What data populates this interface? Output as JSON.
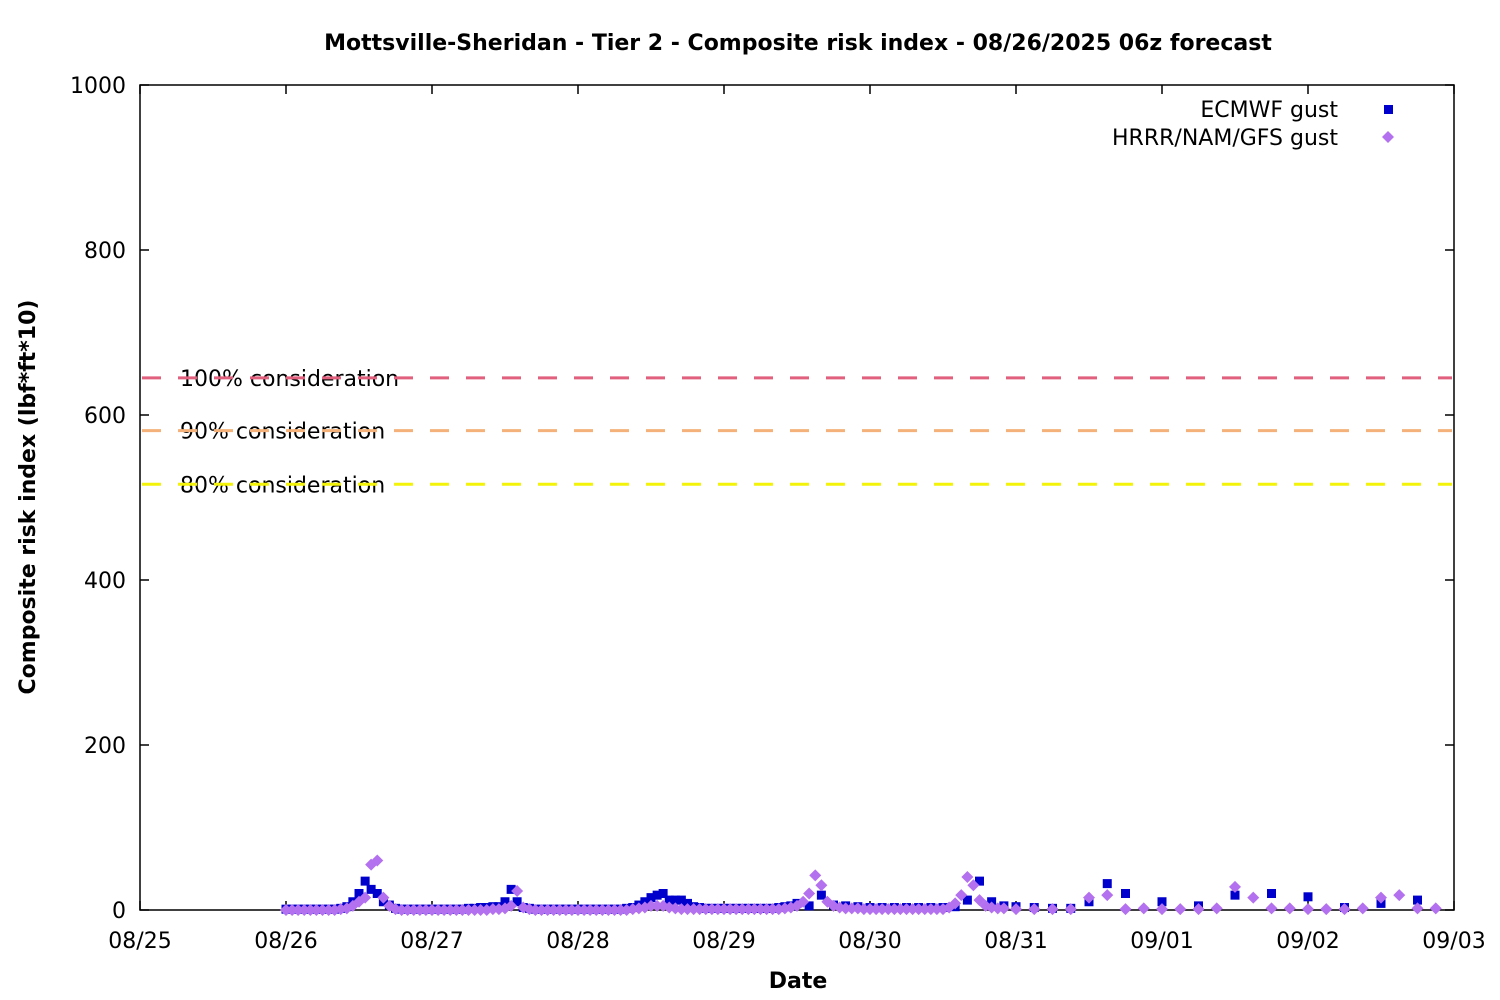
{
  "chart_data": {
    "type": "scatter",
    "title": "Mottsville-Sheridan - Tier 2 - Composite risk index - 08/26/2025 06z forecast",
    "xlabel": "Date",
    "ylabel": "Composite risk index (lbf*ft*10)",
    "xlim": [
      "08/25",
      "09/03"
    ],
    "ylim": [
      0,
      1000
    ],
    "x_ticks": [
      "08/25",
      "08/26",
      "08/27",
      "08/28",
      "08/29",
      "08/30",
      "08/31",
      "09/01",
      "09/02",
      "09/03"
    ],
    "y_ticks": [
      "0",
      "200",
      "400",
      "600",
      "800",
      "1000"
    ],
    "x_unit": "days after 08/25 00z",
    "legend_position": "top-right",
    "reference_lines": [
      {
        "label": "100% consideration",
        "value": 645,
        "color": "#e0607e"
      },
      {
        "label": "90% consideration",
        "value": 581,
        "color": "#f4b27a"
      },
      {
        "label": "80% consideration",
        "value": 516,
        "color": "#f3f30a"
      }
    ],
    "series": [
      {
        "name": "ECMWF gust",
        "color": "#0000cc",
        "marker": "square",
        "points": [
          [
            1.0,
            1
          ],
          [
            1.042,
            1
          ],
          [
            1.083,
            1
          ],
          [
            1.125,
            1
          ],
          [
            1.167,
            1
          ],
          [
            1.208,
            1
          ],
          [
            1.25,
            1
          ],
          [
            1.292,
            1
          ],
          [
            1.333,
            1
          ],
          [
            1.375,
            2
          ],
          [
            1.417,
            4
          ],
          [
            1.458,
            10
          ],
          [
            1.5,
            20
          ],
          [
            1.542,
            35
          ],
          [
            1.583,
            25
          ],
          [
            1.625,
            20
          ],
          [
            1.667,
            10
          ],
          [
            1.708,
            6
          ],
          [
            1.75,
            2
          ],
          [
            1.792,
            1
          ],
          [
            1.833,
            1
          ],
          [
            1.875,
            1
          ],
          [
            1.917,
            1
          ],
          [
            1.958,
            1
          ],
          [
            2.0,
            1
          ],
          [
            2.042,
            1
          ],
          [
            2.083,
            1
          ],
          [
            2.125,
            1
          ],
          [
            2.167,
            1
          ],
          [
            2.208,
            1
          ],
          [
            2.25,
            2
          ],
          [
            2.292,
            2
          ],
          [
            2.333,
            3
          ],
          [
            2.375,
            3
          ],
          [
            2.417,
            4
          ],
          [
            2.458,
            4
          ],
          [
            2.5,
            10
          ],
          [
            2.542,
            25
          ],
          [
            2.583,
            10
          ],
          [
            2.625,
            3
          ],
          [
            2.667,
            2
          ],
          [
            2.708,
            1
          ],
          [
            2.75,
            1
          ],
          [
            2.792,
            1
          ],
          [
            2.833,
            1
          ],
          [
            2.875,
            1
          ],
          [
            2.917,
            1
          ],
          [
            2.958,
            1
          ],
          [
            3.0,
            1
          ],
          [
            3.042,
            1
          ],
          [
            3.083,
            1
          ],
          [
            3.125,
            1
          ],
          [
            3.167,
            1
          ],
          [
            3.208,
            1
          ],
          [
            3.25,
            1
          ],
          [
            3.292,
            1
          ],
          [
            3.333,
            2
          ],
          [
            3.375,
            3
          ],
          [
            3.417,
            6
          ],
          [
            3.458,
            10
          ],
          [
            3.5,
            15
          ],
          [
            3.542,
            18
          ],
          [
            3.583,
            20
          ],
          [
            3.625,
            12
          ],
          [
            3.667,
            12
          ],
          [
            3.708,
            12
          ],
          [
            3.75,
            8
          ],
          [
            3.792,
            4
          ],
          [
            3.833,
            3
          ],
          [
            3.875,
            2
          ],
          [
            3.917,
            2
          ],
          [
            3.958,
            2
          ],
          [
            4.0,
            2
          ],
          [
            4.042,
            2
          ],
          [
            4.083,
            2
          ],
          [
            4.125,
            2
          ],
          [
            4.167,
            2
          ],
          [
            4.208,
            2
          ],
          [
            4.25,
            2
          ],
          [
            4.292,
            2
          ],
          [
            4.333,
            2
          ],
          [
            4.375,
            3
          ],
          [
            4.417,
            4
          ],
          [
            4.458,
            5
          ],
          [
            4.5,
            8
          ],
          [
            4.583,
            5
          ],
          [
            4.667,
            18
          ],
          [
            4.75,
            6
          ],
          [
            4.833,
            5
          ],
          [
            4.917,
            4
          ],
          [
            5.0,
            3
          ],
          [
            5.083,
            3
          ],
          [
            5.167,
            3
          ],
          [
            5.25,
            3
          ],
          [
            5.333,
            3
          ],
          [
            5.417,
            3
          ],
          [
            5.5,
            3
          ],
          [
            5.583,
            4
          ],
          [
            5.667,
            12
          ],
          [
            5.75,
            35
          ],
          [
            5.833,
            10
          ],
          [
            5.917,
            5
          ],
          [
            6.0,
            4
          ],
          [
            6.125,
            3
          ],
          [
            6.25,
            2
          ],
          [
            6.375,
            2
          ],
          [
            6.5,
            10
          ],
          [
            6.625,
            32
          ],
          [
            6.75,
            20
          ],
          [
            7.0,
            10
          ],
          [
            7.25,
            5
          ],
          [
            7.5,
            18
          ],
          [
            7.75,
            20
          ],
          [
            8.0,
            16
          ],
          [
            8.25,
            3
          ],
          [
            8.5,
            8
          ],
          [
            8.75,
            12
          ]
        ]
      },
      {
        "name": "HRRR/NAM/GFS gust",
        "color": "#b370ef",
        "marker": "diamond",
        "points": [
          [
            1.0,
            0
          ],
          [
            1.042,
            0
          ],
          [
            1.083,
            0
          ],
          [
            1.125,
            0
          ],
          [
            1.167,
            0
          ],
          [
            1.208,
            0
          ],
          [
            1.25,
            0
          ],
          [
            1.292,
            0
          ],
          [
            1.333,
            0
          ],
          [
            1.375,
            1
          ],
          [
            1.417,
            2
          ],
          [
            1.458,
            5
          ],
          [
            1.5,
            10
          ],
          [
            1.542,
            15
          ],
          [
            1.583,
            55
          ],
          [
            1.625,
            60
          ],
          [
            1.667,
            15
          ],
          [
            1.708,
            5
          ],
          [
            1.75,
            1
          ],
          [
            1.792,
            0
          ],
          [
            1.833,
            0
          ],
          [
            1.875,
            0
          ],
          [
            1.917,
            0
          ],
          [
            1.958,
            0
          ],
          [
            2.0,
            0
          ],
          [
            2.042,
            0
          ],
          [
            2.083,
            0
          ],
          [
            2.125,
            0
          ],
          [
            2.167,
            0
          ],
          [
            2.208,
            0
          ],
          [
            2.25,
            0
          ],
          [
            2.292,
            0
          ],
          [
            2.333,
            0
          ],
          [
            2.375,
            0
          ],
          [
            2.417,
            1
          ],
          [
            2.458,
            1
          ],
          [
            2.5,
            2
          ],
          [
            2.542,
            5
          ],
          [
            2.583,
            23
          ],
          [
            2.625,
            3
          ],
          [
            2.667,
            1
          ],
          [
            2.708,
            0
          ],
          [
            2.75,
            0
          ],
          [
            2.792,
            0
          ],
          [
            2.833,
            0
          ],
          [
            2.875,
            0
          ],
          [
            2.917,
            0
          ],
          [
            2.958,
            0
          ],
          [
            3.0,
            0
          ],
          [
            3.042,
            0
          ],
          [
            3.083,
            0
          ],
          [
            3.125,
            0
          ],
          [
            3.167,
            0
          ],
          [
            3.208,
            0
          ],
          [
            3.25,
            0
          ],
          [
            3.292,
            0
          ],
          [
            3.333,
            0
          ],
          [
            3.375,
            1
          ],
          [
            3.417,
            2
          ],
          [
            3.458,
            3
          ],
          [
            3.5,
            5
          ],
          [
            3.542,
            5
          ],
          [
            3.583,
            5
          ],
          [
            3.625,
            3
          ],
          [
            3.667,
            2
          ],
          [
            3.708,
            1
          ],
          [
            3.75,
            1
          ],
          [
            3.792,
            1
          ],
          [
            3.833,
            1
          ],
          [
            3.875,
            1
          ],
          [
            3.917,
            1
          ],
          [
            3.958,
            1
          ],
          [
            4.0,
            1
          ],
          [
            4.042,
            1
          ],
          [
            4.083,
            1
          ],
          [
            4.125,
            1
          ],
          [
            4.167,
            1
          ],
          [
            4.208,
            1
          ],
          [
            4.25,
            1
          ],
          [
            4.292,
            1
          ],
          [
            4.333,
            1
          ],
          [
            4.375,
            1
          ],
          [
            4.417,
            2
          ],
          [
            4.458,
            3
          ],
          [
            4.5,
            5
          ],
          [
            4.542,
            10
          ],
          [
            4.583,
            20
          ],
          [
            4.625,
            42
          ],
          [
            4.667,
            30
          ],
          [
            4.708,
            10
          ],
          [
            4.75,
            5
          ],
          [
            4.792,
            3
          ],
          [
            4.833,
            2
          ],
          [
            4.875,
            2
          ],
          [
            4.917,
            2
          ],
          [
            4.958,
            1
          ],
          [
            5.0,
            1
          ],
          [
            5.042,
            1
          ],
          [
            5.083,
            1
          ],
          [
            5.125,
            1
          ],
          [
            5.167,
            1
          ],
          [
            5.208,
            1
          ],
          [
            5.25,
            1
          ],
          [
            5.292,
            1
          ],
          [
            5.333,
            1
          ],
          [
            5.375,
            1
          ],
          [
            5.417,
            1
          ],
          [
            5.458,
            1
          ],
          [
            5.5,
            1
          ],
          [
            5.542,
            3
          ],
          [
            5.583,
            8
          ],
          [
            5.625,
            18
          ],
          [
            5.667,
            40
          ],
          [
            5.708,
            30
          ],
          [
            5.75,
            12
          ],
          [
            5.792,
            5
          ],
          [
            5.833,
            3
          ],
          [
            5.875,
            2
          ],
          [
            5.917,
            2
          ],
          [
            6.0,
            1
          ],
          [
            6.125,
            1
          ],
          [
            6.25,
            1
          ],
          [
            6.375,
            1
          ],
          [
            6.5,
            15
          ],
          [
            6.625,
            18
          ],
          [
            6.75,
            1
          ],
          [
            6.875,
            2
          ],
          [
            7.0,
            1
          ],
          [
            7.125,
            1
          ],
          [
            7.25,
            1
          ],
          [
            7.375,
            2
          ],
          [
            7.5,
            28
          ],
          [
            7.625,
            15
          ],
          [
            7.75,
            2
          ],
          [
            7.875,
            2
          ],
          [
            8.0,
            1
          ],
          [
            8.125,
            1
          ],
          [
            8.25,
            1
          ],
          [
            8.375,
            2
          ],
          [
            8.5,
            15
          ],
          [
            8.625,
            18
          ],
          [
            8.75,
            2
          ],
          [
            8.875,
            2
          ]
        ]
      }
    ]
  }
}
